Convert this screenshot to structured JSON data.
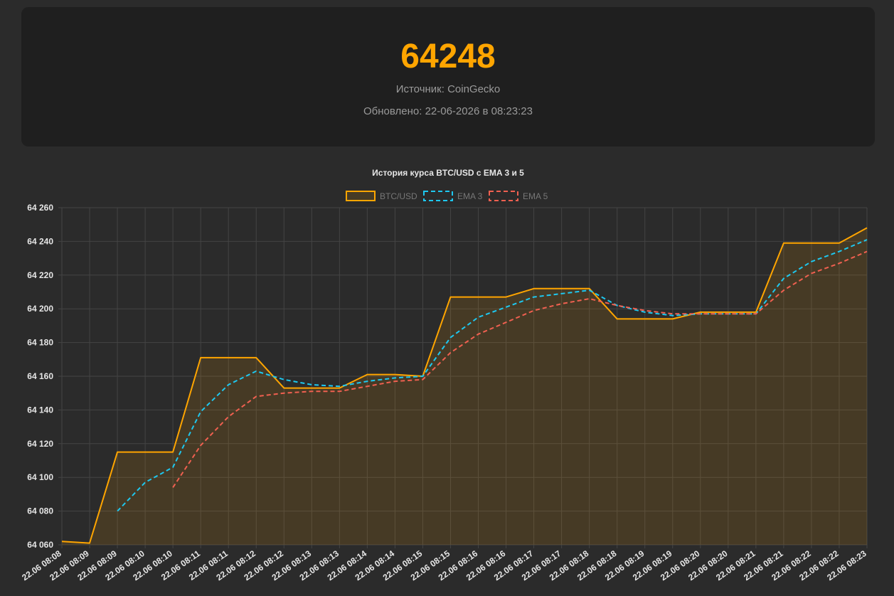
{
  "header": {
    "price": "64248",
    "source": "Источник: CoinGecko",
    "updated": "Обновлено: 22-06-2026 в 08:23:23"
  },
  "colors": {
    "price": "#ffa500",
    "btc": "#ffa500",
    "ema3": "#1ec8f0",
    "ema5": "#f06050"
  },
  "chart_data": {
    "type": "line",
    "title": "История курса BTC/USD с EMA 3 и 5",
    "legend_position": "top",
    "grid": true,
    "ylim": [
      64060,
      64260
    ],
    "y_ticks": [
      "64 060",
      "64 080",
      "64 100",
      "64 120",
      "64 140",
      "64 160",
      "64 180",
      "64 200",
      "64 220",
      "64 240",
      "64 260"
    ],
    "categories": [
      "22.06 08:08",
      "22.06 08:09",
      "22.06 08:09",
      "22.06 08:10",
      "22.06 08:10",
      "22.06 08:11",
      "22.06 08:11",
      "22.06 08:12",
      "22.06 08:12",
      "22.06 08:13",
      "22.06 08:13",
      "22.06 08:14",
      "22.06 08:14",
      "22.06 08:15",
      "22.06 08:15",
      "22.06 08:16",
      "22.06 08:16",
      "22.06 08:17",
      "22.06 08:17",
      "22.06 08:18",
      "22.06 08:18",
      "22.06 08:19",
      "22.06 08:19",
      "22.06 08:20",
      "22.06 08:20",
      "22.06 08:21",
      "22.06 08:21",
      "22.06 08:22",
      "22.06 08:22",
      "22.06 08:23"
    ],
    "series": [
      {
        "name": "BTC/USD",
        "style": "solid-fill",
        "values": [
          64062,
          64061,
          64115,
          64115,
          64115,
          64171,
          64171,
          64171,
          64153,
          64153,
          64153,
          64161,
          64161,
          64160,
          64207,
          64207,
          64207,
          64212,
          64212,
          64212,
          64194,
          64194,
          64194,
          64198,
          64198,
          64198,
          64239,
          64239,
          64239,
          64248
        ]
      },
      {
        "name": "EMA 3",
        "style": "dashed",
        "values": [
          null,
          null,
          64080,
          64097,
          64106,
          64139,
          64155,
          64163,
          64158,
          64155,
          64154,
          64157,
          64159,
          64160,
          64183,
          64195,
          64201,
          64207,
          64209,
          64211,
          64202,
          64198,
          64196,
          64197,
          64197,
          64197,
          64218,
          64228,
          64234,
          64241
        ]
      },
      {
        "name": "EMA 5",
        "style": "dashed",
        "values": [
          null,
          null,
          null,
          null,
          64094,
          64119,
          64136,
          64148,
          64150,
          64151,
          64151,
          64154,
          64157,
          64158,
          64174,
          64185,
          64192,
          64199,
          64203,
          64206,
          64202,
          64199,
          64197,
          64197,
          64197,
          64197,
          64211,
          64221,
          64227,
          64234
        ]
      }
    ]
  }
}
